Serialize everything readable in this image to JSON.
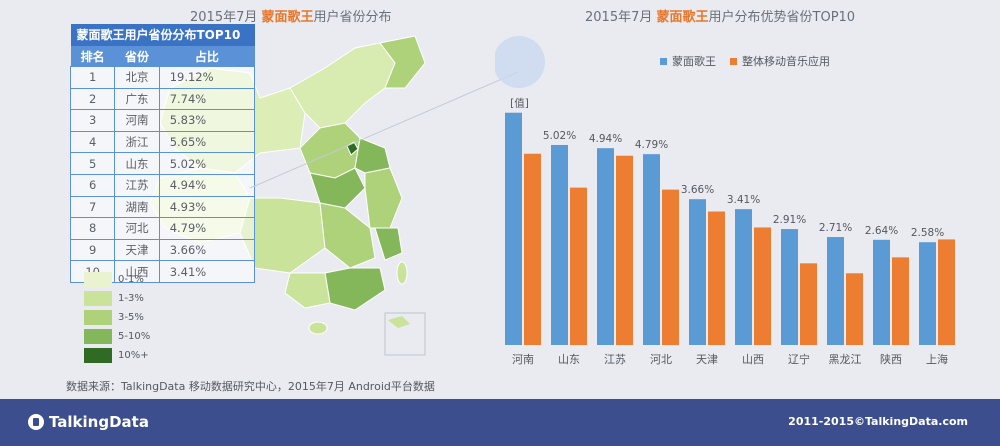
{
  "left_title": {
    "prefix": "2015年7月 ",
    "highlight": "蒙面歌王",
    "suffix": "用户省份分布"
  },
  "right_title": {
    "prefix": "2015年7月 ",
    "highlight": "蒙面歌王",
    "suffix": "用户分布优势省份TOP10"
  },
  "table": {
    "caption": "蒙面歌王用户省份分布TOP10",
    "headers": [
      "排名",
      "省份",
      "占比"
    ],
    "rows": [
      {
        "rank": "1",
        "province": "北京",
        "share": "19.12%"
      },
      {
        "rank": "2",
        "province": "广东",
        "share": "7.74%"
      },
      {
        "rank": "3",
        "province": "河南",
        "share": "5.83%"
      },
      {
        "rank": "4",
        "province": "浙江",
        "share": "5.65%"
      },
      {
        "rank": "5",
        "province": "山东",
        "share": "5.02%"
      },
      {
        "rank": "6",
        "province": "江苏",
        "share": "4.94%"
      },
      {
        "rank": "7",
        "province": "湖南",
        "share": "4.93%"
      },
      {
        "rank": "8",
        "province": "河北",
        "share": "4.79%"
      },
      {
        "rank": "9",
        "province": "天津",
        "share": "3.66%"
      },
      {
        "rank": "10",
        "province": "山西",
        "share": "3.41%"
      }
    ]
  },
  "map_legend": [
    {
      "label": "0-1%",
      "color": "#eaf3cf"
    },
    {
      "label": "1-3%",
      "color": "#c9e39a"
    },
    {
      "label": "3-5%",
      "color": "#add27a"
    },
    {
      "label": "5-10%",
      "color": "#84b65a"
    },
    {
      "label": "10%+",
      "color": "#2f6b22"
    }
  ],
  "source": "数据来源：TalkingData 移动数据研究中心，2015年7月 Android平台数据",
  "footer": {
    "logo": "TalkingData",
    "copyright": "2011-2015©TalkingData.com"
  },
  "chart_data": {
    "type": "bar",
    "categories": [
      "河南",
      "山东",
      "江苏",
      "河北",
      "天津",
      "山西",
      "辽宁",
      "黑龙江",
      "陕西",
      "上海"
    ],
    "series": [
      {
        "name": "蒙面歌王",
        "color": "#5b9bd5",
        "values": [
          5.83,
          5.02,
          4.94,
          4.79,
          3.66,
          3.41,
          2.91,
          2.71,
          2.64,
          2.58
        ]
      },
      {
        "name": "整体移动音乐应用",
        "color": "#ed7d31",
        "values": [
          4.8,
          3.95,
          4.75,
          3.9,
          3.35,
          2.95,
          2.05,
          1.8,
          2.2,
          2.65
        ]
      }
    ],
    "data_labels": [
      "[值]",
      "5.02%",
      "4.94%",
      "4.79%",
      "3.66%",
      "3.41%",
      "2.91%",
      "2.71%",
      "2.64%",
      "2.58%"
    ],
    "ylim": [
      0,
      6.4
    ]
  }
}
